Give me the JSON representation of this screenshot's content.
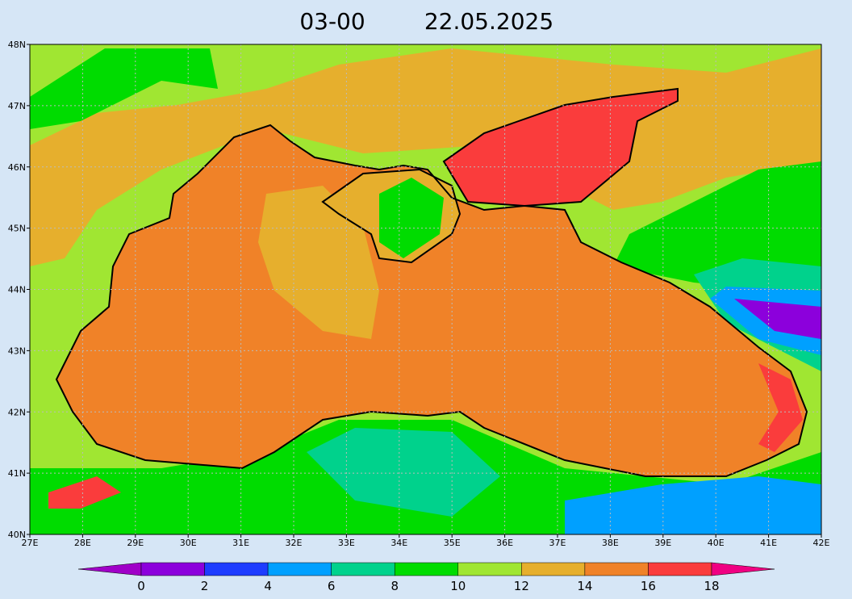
{
  "map": {
    "title": "03-00",
    "date": "22.05.2025",
    "lonlim": [
      27,
      42
    ],
    "latlim": [
      40,
      48
    ],
    "lonticks": [
      {
        "value": 27,
        "label": "27E"
      },
      {
        "value": 28,
        "label": "28E"
      },
      {
        "value": 29,
        "label": "29E"
      },
      {
        "value": 30,
        "label": "30E"
      },
      {
        "value": 31,
        "label": "31E"
      },
      {
        "value": 32,
        "label": "32E"
      },
      {
        "value": 33,
        "label": "33E"
      },
      {
        "value": 34,
        "label": "34E"
      },
      {
        "value": 35,
        "label": "35E"
      },
      {
        "value": 36,
        "label": "36E"
      },
      {
        "value": 37,
        "label": "37E"
      },
      {
        "value": 38,
        "label": "38E"
      },
      {
        "value": 39,
        "label": "39E"
      },
      {
        "value": 40,
        "label": "40E"
      },
      {
        "value": 41,
        "label": "41E"
      },
      {
        "value": 42,
        "label": "42E"
      }
    ],
    "latticks": [
      {
        "value": 40,
        "label": "40N"
      },
      {
        "value": 41,
        "label": "41N"
      },
      {
        "value": 42,
        "label": "42N"
      },
      {
        "value": 43,
        "label": "43N"
      },
      {
        "value": 44,
        "label": "44N"
      },
      {
        "value": 45,
        "label": "45N"
      },
      {
        "value": 46,
        "label": "46N"
      },
      {
        "value": 47,
        "label": "47N"
      },
      {
        "value": 48,
        "label": "48N"
      }
    ],
    "grid": true,
    "colorbar": {
      "levels": [
        0,
        2,
        4,
        6,
        8,
        10,
        12,
        14,
        16,
        18
      ],
      "colors": [
        "#a000c8",
        "#8c00dc",
        "#1e3cff",
        "#00a0ff",
        "#00d28c",
        "#00dc00",
        "#a0e632",
        "#e6af2d",
        "#f08228",
        "#fa3c3c",
        "#f00082"
      ]
    }
  }
}
